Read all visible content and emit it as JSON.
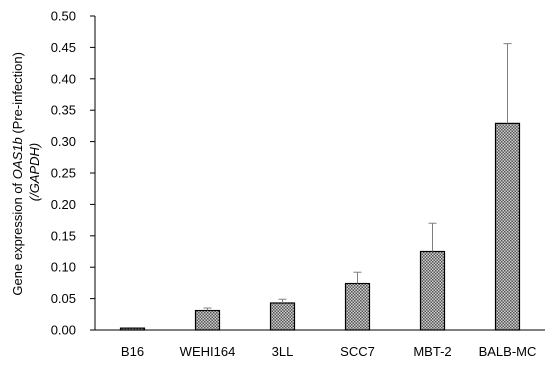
{
  "chart_data": {
    "type": "bar",
    "ylabel_main": "Gene expression of ",
    "ylabel_gene": "OAS1b",
    "ylabel_suffix": " (Pre-infection)",
    "ylabel_line2": "(/GAPDH)",
    "xlabel": "",
    "ylim": [
      0,
      0.5
    ],
    "yticks": [
      "0.00",
      "0.05",
      "0.10",
      "0.15",
      "0.20",
      "0.25",
      "0.30",
      "0.35",
      "0.40",
      "0.45",
      "0.50"
    ],
    "categories": [
      "B16",
      "WEHI164",
      "3LL",
      "SCC7",
      "MBT-2",
      "BALB-MC"
    ],
    "values": [
      0.003,
      0.031,
      0.043,
      0.074,
      0.125,
      0.329
    ],
    "errors": [
      0.001,
      0.004,
      0.006,
      0.018,
      0.045,
      0.127
    ],
    "grid": false,
    "bar_pattern": "checkered",
    "bar_color": "#9a9a9a",
    "edge_color": "#000000"
  }
}
